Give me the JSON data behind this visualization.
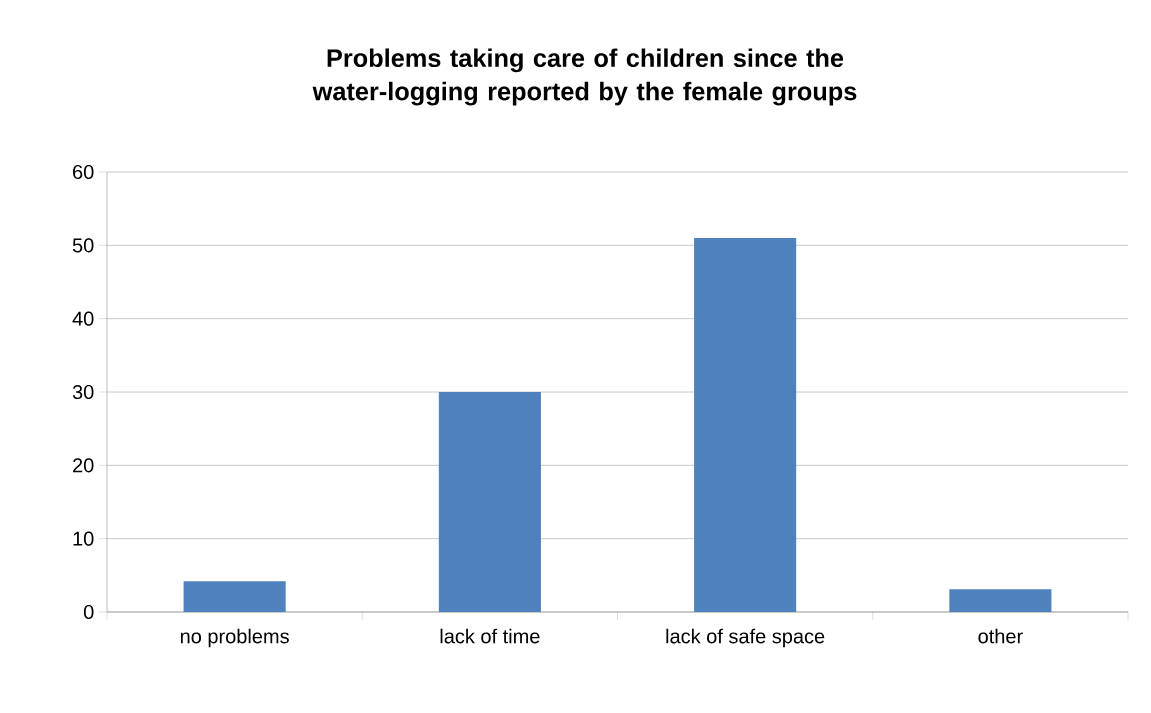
{
  "chart_data": {
    "type": "bar",
    "title": "Problems taking care of children since the water-logging reported by the female groups",
    "categories": [
      "no problems",
      "lack of time",
      "lack of safe space",
      "other"
    ],
    "values": [
      4.2,
      30,
      51,
      3.1
    ],
    "color": "#4f81bd",
    "ylim": [
      0,
      60
    ],
    "yticks": [
      0,
      10,
      20,
      30,
      40,
      50,
      60
    ],
    "grid": "y"
  }
}
